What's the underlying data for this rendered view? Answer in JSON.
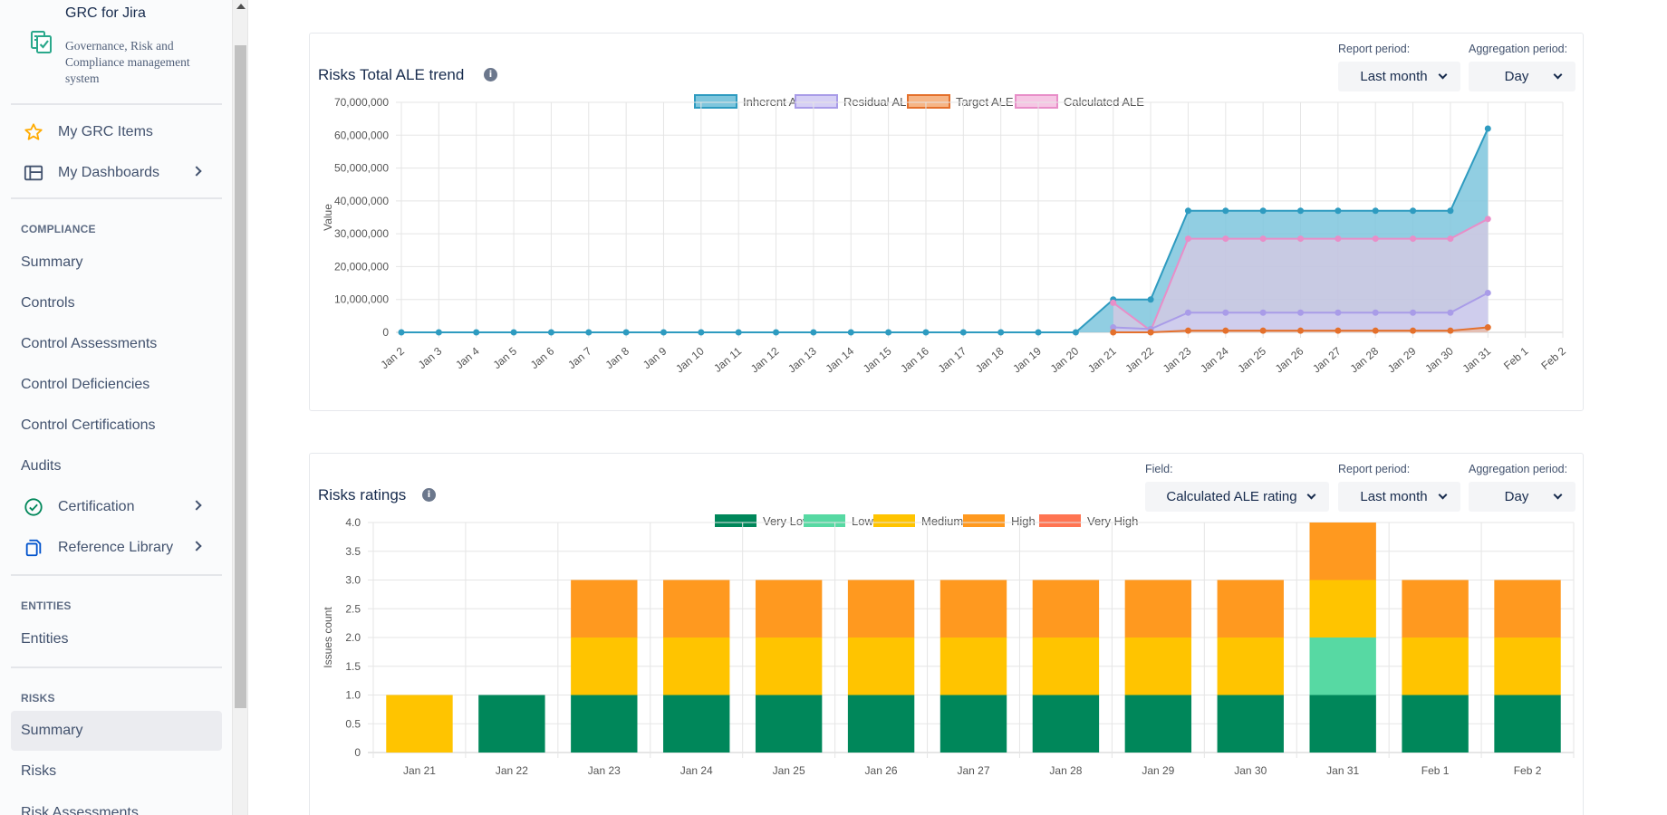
{
  "app": {
    "title": "GRC for Jira",
    "subtitle": "Governance, Risk and Compliance management system"
  },
  "sidebar": {
    "top_items": [
      {
        "label": "My GRC Items",
        "icon": "star-icon"
      },
      {
        "label": "My Dashboards",
        "icon": "dashboard-icon"
      }
    ],
    "compliance": {
      "label": "COMPLIANCE",
      "items": [
        {
          "label": "Summary"
        },
        {
          "label": "Controls"
        },
        {
          "label": "Control Assessments"
        },
        {
          "label": "Control Deficiencies"
        },
        {
          "label": "Control Certifications"
        },
        {
          "label": "Audits"
        },
        {
          "label": "Certification",
          "icon": "check-circle-icon"
        },
        {
          "label": "Reference Library",
          "icon": "copy-icon"
        }
      ]
    },
    "entities": {
      "label": "ENTITIES",
      "items": [
        {
          "label": "Entities"
        }
      ]
    },
    "risks": {
      "label": "RISKS",
      "items": [
        {
          "label": "Summary",
          "active": true
        },
        {
          "label": "Risks"
        },
        {
          "label": "Risk Assessments"
        }
      ]
    }
  },
  "ale_card": {
    "title": "Risks Total ALE trend",
    "report_period_label": "Report period:",
    "report_period_value": "Last month",
    "aggregation_label": "Aggregation period:",
    "aggregation_value": "Day"
  },
  "ratings_card": {
    "title": "Risks ratings",
    "field_label": "Field:",
    "field_value": "Calculated ALE rating",
    "report_period_label": "Report period:",
    "report_period_value": "Last month",
    "aggregation_label": "Aggregation period:",
    "aggregation_value": "Day"
  },
  "chart_data": [
    {
      "type": "area",
      "title": "Risks Total ALE trend",
      "ylabel": "Value",
      "ylim": [
        0,
        70000000
      ],
      "yticks": [
        "0",
        "10,000,000",
        "20,000,000",
        "30,000,000",
        "40,000,000",
        "50,000,000",
        "60,000,000",
        "70,000,000"
      ],
      "legend_position": "top",
      "grid": true,
      "x": [
        "Jan 2",
        "Jan 3",
        "Jan 4",
        "Jan 5",
        "Jan 6",
        "Jan 7",
        "Jan 8",
        "Jan 9",
        "Jan 10",
        "Jan 11",
        "Jan 12",
        "Jan 13",
        "Jan 14",
        "Jan 15",
        "Jan 16",
        "Jan 17",
        "Jan 18",
        "Jan 19",
        "Jan 20",
        "Jan 21",
        "Jan 22",
        "Jan 23",
        "Jan 24",
        "Jan 25",
        "Jan 26",
        "Jan 27",
        "Jan 28",
        "Jan 29",
        "Jan 30",
        "Jan 31",
        "Feb 1",
        "Feb 2"
      ],
      "series": [
        {
          "name": "Inherent ALE",
          "color": "#2e9bc0",
          "fill": "#7ec6dd",
          "values": [
            0,
            0,
            0,
            0,
            0,
            0,
            0,
            0,
            0,
            0,
            0,
            0,
            0,
            0,
            0,
            0,
            0,
            0,
            0,
            10000000,
            10000000,
            37000000,
            37000000,
            37000000,
            37000000,
            37000000,
            37000000,
            37000000,
            37000000,
            62000000,
            null,
            null
          ]
        },
        {
          "name": "Residual ALE",
          "color": "#a99ce8",
          "fill": "#d6d0f5",
          "values": [
            null,
            null,
            null,
            null,
            null,
            null,
            null,
            null,
            null,
            null,
            null,
            null,
            null,
            null,
            null,
            null,
            null,
            null,
            null,
            1500000,
            1000000,
            6000000,
            6000000,
            6000000,
            6000000,
            6000000,
            6000000,
            6000000,
            6000000,
            12000000,
            null,
            null
          ]
        },
        {
          "name": "Target ALE",
          "color": "#e4702c",
          "fill": "#f6b586",
          "values": [
            null,
            null,
            null,
            null,
            null,
            null,
            null,
            null,
            null,
            null,
            null,
            null,
            null,
            null,
            null,
            null,
            null,
            null,
            null,
            0,
            0,
            500000,
            500000,
            500000,
            500000,
            500000,
            500000,
            500000,
            500000,
            1500000,
            null,
            null
          ]
        },
        {
          "name": "Calculated ALE",
          "color": "#e88ec8",
          "fill": "#f6c6e4",
          "values": [
            null,
            null,
            null,
            null,
            null,
            null,
            null,
            null,
            null,
            null,
            null,
            null,
            null,
            null,
            null,
            null,
            null,
            null,
            null,
            9000000,
            500000,
            28500000,
            28500000,
            28500000,
            28500000,
            28500000,
            28500000,
            28500000,
            28500000,
            34500000,
            null,
            null
          ]
        }
      ]
    },
    {
      "type": "bar",
      "stacked": true,
      "title": "Risks ratings",
      "ylabel": "Issues count",
      "ylim": [
        0,
        4
      ],
      "yticks": [
        "0",
        "0.5",
        "1.0",
        "1.5",
        "2.0",
        "2.5",
        "3.0",
        "3.5",
        "4.0"
      ],
      "legend_position": "top",
      "grid": true,
      "categories": [
        "Jan 21",
        "Jan 22",
        "Jan 23",
        "Jan 24",
        "Jan 25",
        "Jan 26",
        "Jan 27",
        "Jan 28",
        "Jan 29",
        "Jan 30",
        "Jan 31",
        "Feb 1",
        "Feb 2"
      ],
      "series": [
        {
          "name": "Very Low",
          "color": "#00875a",
          "values": [
            0,
            1,
            1,
            1,
            1,
            1,
            1,
            1,
            1,
            1,
            1,
            1,
            1
          ]
        },
        {
          "name": "Low",
          "color": "#57d9a3",
          "values": [
            0,
            0,
            0,
            0,
            0,
            0,
            0,
            0,
            0,
            0,
            1,
            0,
            0
          ]
        },
        {
          "name": "Medium",
          "color": "#ffc400",
          "values": [
            1,
            0,
            1,
            1,
            1,
            1,
            1,
            1,
            1,
            1,
            1,
            1,
            1
          ]
        },
        {
          "name": "High",
          "color": "#ff991f",
          "values": [
            0,
            0,
            1,
            1,
            1,
            1,
            1,
            1,
            1,
            1,
            1,
            1,
            1
          ]
        },
        {
          "name": "Very High",
          "color": "#ff7452",
          "values": [
            0,
            0,
            0,
            0,
            0,
            0,
            0,
            0,
            0,
            0,
            0,
            0,
            0
          ]
        }
      ]
    }
  ]
}
